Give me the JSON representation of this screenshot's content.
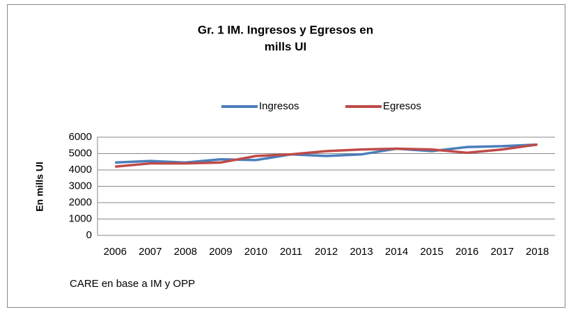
{
  "chart_data": {
    "type": "line",
    "title": [
      "Gr. 1 IM.  Ingresos y Egresos en",
      "mills UI"
    ],
    "y_label": "En mills UI",
    "note": "CARE en base a IM y OPP",
    "categories": [
      "2006",
      "2007",
      "2008",
      "2009",
      "2010",
      "2011",
      "2012",
      "2013",
      "2014",
      "2015",
      "2016",
      "2017",
      "2018"
    ],
    "series": [
      {
        "name": "Ingresos",
        "color": "#4a7ebb",
        "values": [
          4450,
          4550,
          4450,
          4650,
          4600,
          4950,
          4850,
          4950,
          5300,
          5150,
          5400,
          5450,
          5550
        ]
      },
      {
        "name": "Egresos",
        "color": "#be4b48",
        "values": [
          4200,
          4400,
          4400,
          4450,
          4850,
          4950,
          5150,
          5250,
          5300,
          5250,
          5050,
          5250,
          5550
        ]
      }
    ],
    "ylim": [
      0,
      6000
    ],
    "yticks": [
      0,
      1000,
      2000,
      3000,
      4000,
      5000,
      6000
    ],
    "grid": true,
    "legend": "top"
  }
}
